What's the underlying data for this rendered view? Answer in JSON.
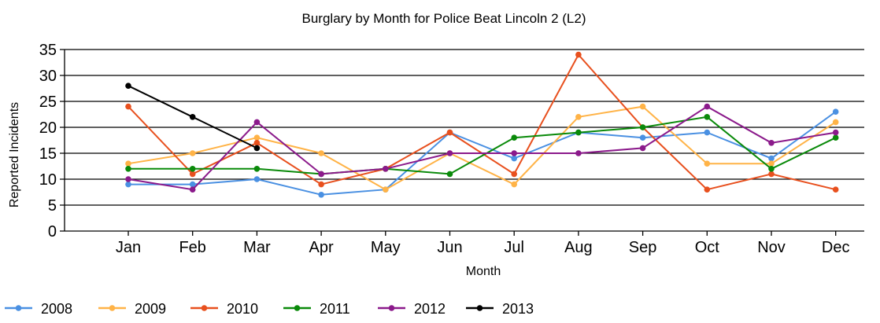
{
  "chart_data": {
    "type": "line",
    "title": "Burglary by Month for Police Beat Lincoln 2 (L2)",
    "xlabel": "Month",
    "ylabel": "Reported Incidents",
    "categories": [
      "Jan",
      "Feb",
      "Mar",
      "Apr",
      "May",
      "Jun",
      "Jul",
      "Aug",
      "Sep",
      "Oct",
      "Nov",
      "Dec"
    ],
    "ylim": [
      0,
      35
    ],
    "yticks": [
      0,
      5,
      10,
      15,
      20,
      25,
      30,
      35
    ],
    "grid": "horizontal",
    "legend_position": "bottom-left",
    "series": [
      {
        "name": "2008",
        "color": "#4a90e2",
        "values": [
          9,
          9,
          10,
          7,
          8,
          19,
          14,
          19,
          18,
          19,
          14,
          23
        ]
      },
      {
        "name": "2009",
        "color": "#ffb347",
        "values": [
          13,
          15,
          18,
          15,
          8,
          15,
          9,
          22,
          24,
          13,
          13,
          21
        ]
      },
      {
        "name": "2010",
        "color": "#e8501e",
        "values": [
          24,
          11,
          17,
          9,
          12,
          19,
          11,
          34,
          20,
          8,
          11,
          8
        ]
      },
      {
        "name": "2011",
        "color": "#0a8a0a",
        "values": [
          12,
          12,
          12,
          11,
          12,
          11,
          18,
          19,
          20,
          22,
          12,
          18
        ]
      },
      {
        "name": "2012",
        "color": "#8b1a8b",
        "values": [
          10,
          8,
          21,
          11,
          12,
          15,
          15,
          15,
          16,
          24,
          17,
          19
        ]
      },
      {
        "name": "2013",
        "color": "#000000",
        "values": [
          28,
          22,
          16,
          null,
          null,
          null,
          null,
          null,
          null,
          null,
          null,
          null
        ]
      }
    ]
  }
}
